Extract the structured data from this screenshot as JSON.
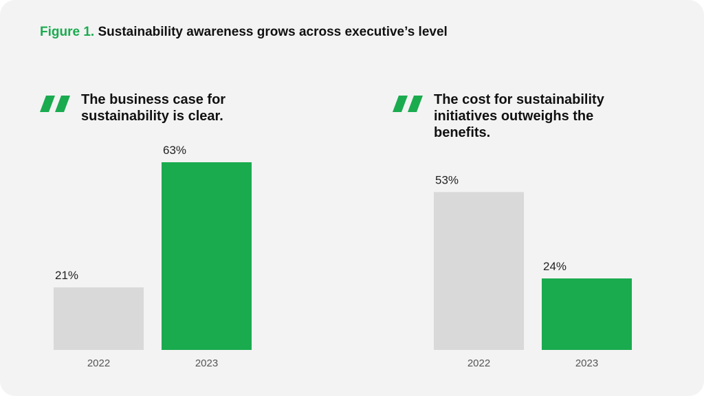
{
  "title": {
    "label": "Figure 1.",
    "text": "Sustainability awareness grows across executive’s level"
  },
  "colors": {
    "accent": "#1aab4f",
    "bar_2022": "#d9d9d9",
    "bar_2023": "#1aab4f",
    "background": "#f3f3f3"
  },
  "icons": {
    "quote": "quote-mark-icon"
  },
  "chart_data": [
    {
      "type": "bar",
      "title": "The business case for sustainability is clear.",
      "categories": [
        "2022",
        "2023"
      ],
      "values": [
        21,
        63
      ],
      "value_labels": [
        "21%",
        "63%"
      ],
      "ylim": [
        0,
        63
      ],
      "xlabel": "",
      "ylabel": "",
      "grid": false
    },
    {
      "type": "bar",
      "title": "The cost for sustainability initiatives outweighs the benefits.",
      "categories": [
        "2022",
        "2023"
      ],
      "values": [
        53,
        24
      ],
      "value_labels": [
        "53%",
        "24%"
      ],
      "ylim": [
        0,
        63
      ],
      "xlabel": "",
      "ylabel": "",
      "grid": false
    }
  ]
}
